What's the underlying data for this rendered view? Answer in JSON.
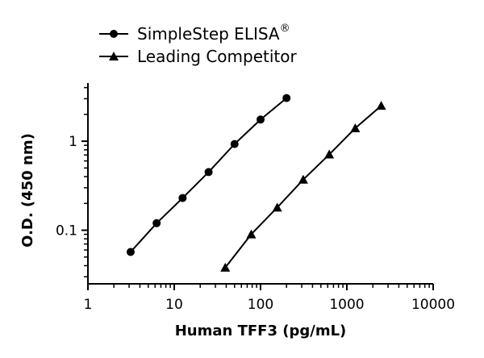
{
  "chart_data": {
    "type": "line",
    "xscale": "log",
    "yscale": "log",
    "xlabel": "Human TFF3 (pg/mL)",
    "ylabel": "O.D. (450 nm)",
    "xlim": [
      1,
      10000
    ],
    "ylim": [
      0.025,
      4.5
    ],
    "x_ticks": [
      1,
      10,
      100,
      1000,
      10000
    ],
    "x_tick_labels": [
      "1",
      "10",
      "100",
      "1000",
      "10000"
    ],
    "y_ticks": [
      0.1,
      1
    ],
    "y_tick_labels": [
      "0.1",
      "1"
    ],
    "grid": false,
    "legend_position": "top-left",
    "series": [
      {
        "name": "SimpleStep ELISA",
        "name_superscript": "®",
        "marker": "circle",
        "color": "#000000",
        "x": [
          3.125,
          6.25,
          12.5,
          25,
          50,
          100,
          200
        ],
        "y": [
          0.057,
          0.12,
          0.23,
          0.45,
          0.93,
          1.75,
          3.05
        ]
      },
      {
        "name": "Leading Competitor",
        "marker": "triangle",
        "color": "#000000",
        "x": [
          39,
          78,
          156,
          312,
          625,
          1250,
          2500
        ],
        "y": [
          0.038,
          0.09,
          0.18,
          0.37,
          0.71,
          1.4,
          2.5
        ]
      }
    ]
  }
}
